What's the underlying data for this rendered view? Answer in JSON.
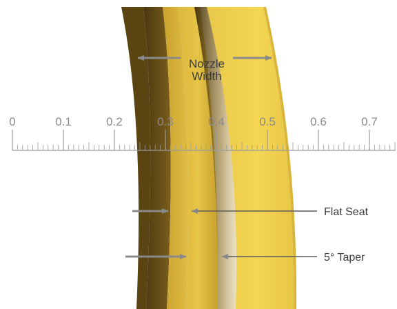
{
  "labels": {
    "nozzle_line1": "Nozzle",
    "nozzle_line2": "Width",
    "flat_seat": "Flat Seat",
    "taper": "5° Taper"
  },
  "ruler": {
    "tick_labels": [
      "0",
      "0.1",
      "0.2",
      "0.3",
      "0.4",
      "0.5",
      "0.6",
      "0.7"
    ],
    "minor_per_major": 10
  },
  "colors": {
    "gold_light": "#f2d24a",
    "gold_mid": "#d9b53a",
    "gold_dark": "#6e5418",
    "arrow": "#8a8a8a",
    "ruler": "#9a9a9a",
    "text": "#3a3a3a"
  }
}
